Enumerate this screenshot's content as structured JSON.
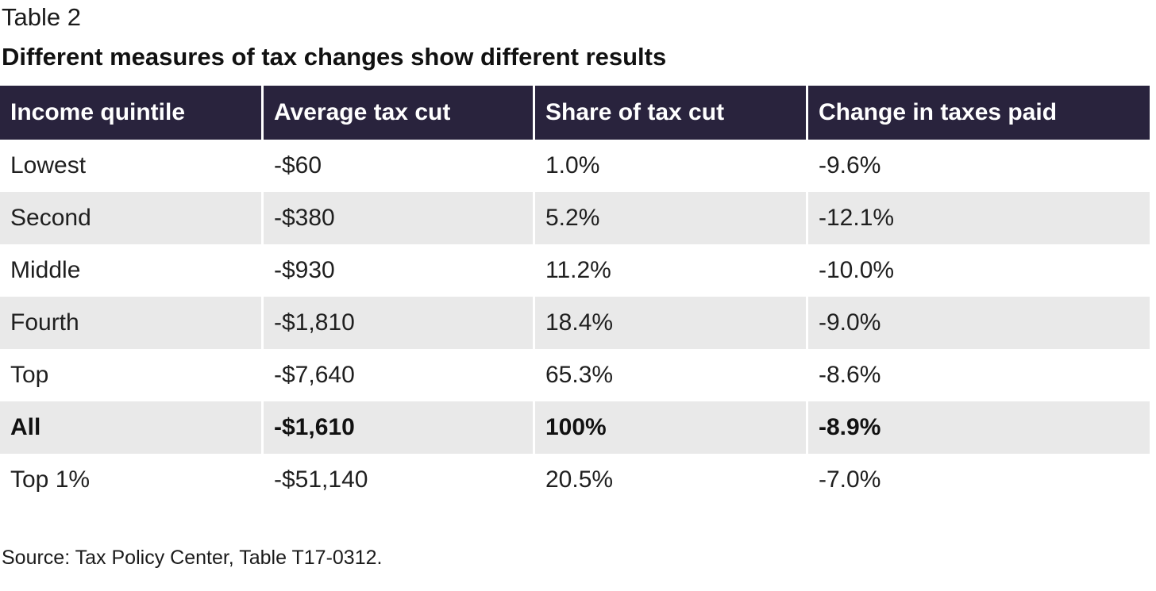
{
  "table_label": "Table 2",
  "title": "Different measures of tax changes show different results",
  "table": {
    "headers": [
      "Income quintile",
      "Average tax cut",
      "Share of tax cut",
      "Change in taxes paid"
    ],
    "rows": [
      [
        "Lowest",
        "-$60",
        "1.0%",
        "-9.6%"
      ],
      [
        "Second",
        "-$380",
        "5.2%",
        "-12.1%"
      ],
      [
        "Middle",
        "-$930",
        "11.2%",
        "-10.0%"
      ],
      [
        "Fourth",
        "-$1,810",
        "18.4%",
        "-9.0%"
      ],
      [
        "Top",
        "-$7,640",
        "65.3%",
        "-8.6%"
      ],
      [
        "All",
        "-$1,610",
        "100%",
        "-8.9%"
      ],
      [
        "Top 1%",
        "-$51,140",
        "20.5%",
        "-7.0%"
      ]
    ]
  },
  "source": "Source: Tax Policy Center, Table T17-0312.",
  "colors": {
    "header_background": "#29233d",
    "header_text": "#ffffff",
    "shaded_row": "#e9e9e9"
  }
}
